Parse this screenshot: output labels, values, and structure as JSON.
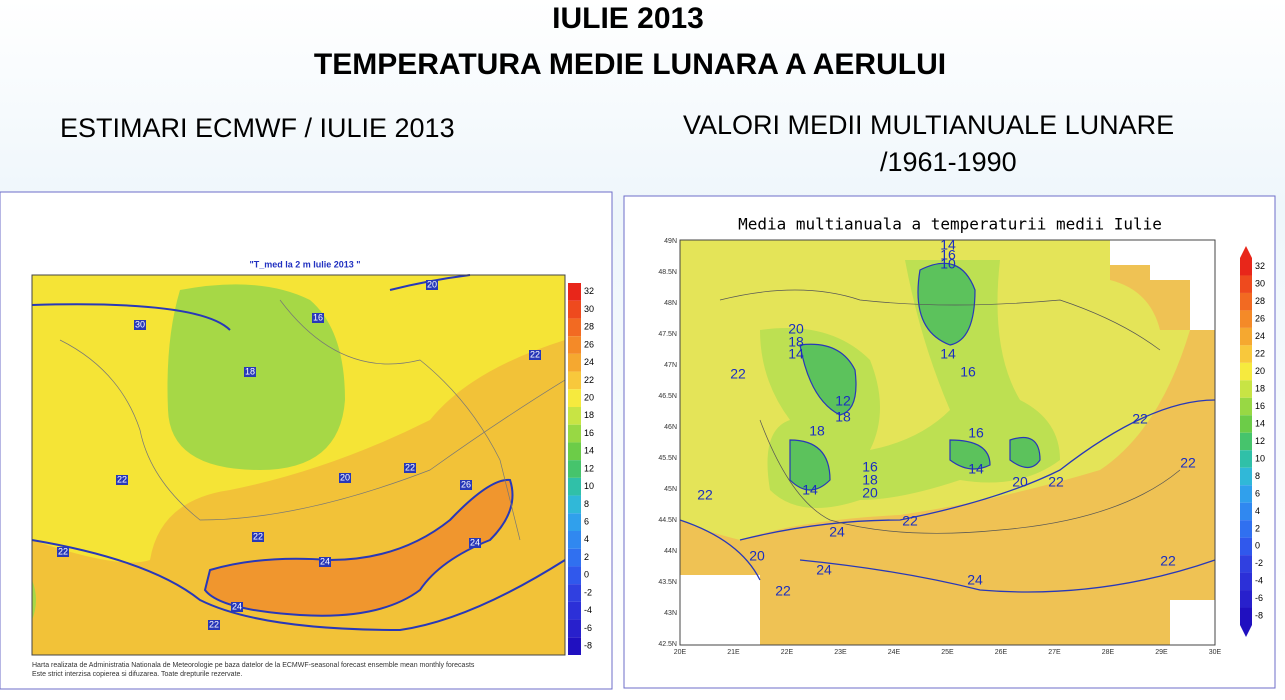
{
  "header": {
    "title": "IULIE 2013",
    "subtitle": "TEMPERATURA MEDIE LUNARA A AERULUI"
  },
  "left": {
    "caption": "ESTIMARI ECMWF / IULIE 2013",
    "map_title": "\"T_med la 2 m Iulie 2013 \"",
    "colorbar": [
      "32",
      "30",
      "28",
      "26",
      "24",
      "22",
      "20",
      "18",
      "16",
      "14",
      "12",
      "10",
      "8",
      "6",
      "4",
      "2",
      "0",
      "-2",
      "-4",
      "-6",
      "-8"
    ],
    "contour_labels": [
      "30",
      "16",
      "18",
      "20",
      "22",
      "20",
      "22",
      "22",
      "22",
      "26",
      "24",
      "24",
      "24",
      "22",
      "22"
    ],
    "footer": [
      "Harta realizata de Administratia Nationala de Meteorologie pe baza datelor de la ECMWF-seasonal forecast ensemble mean monthly forecasts",
      "Este strict interzisa copierea si difuzarea. Toate drepturile rezervate."
    ]
  },
  "right": {
    "caption": [
      "VALORI MEDII MULTIANUALE LUNARE",
      "/1961-1990"
    ],
    "map_title": "Media multianuala a temperaturii medii Iulie",
    "colorbar": [
      "32",
      "30",
      "28",
      "26",
      "24",
      "22",
      "20",
      "18",
      "16",
      "14",
      "12",
      "10",
      "8",
      "6",
      "4",
      "2",
      "0",
      "-2",
      "-4",
      "-6",
      "-8"
    ],
    "lat_labels": [
      "49N",
      "48.5N",
      "48N",
      "47.5N",
      "47N",
      "46.5N",
      "46N",
      "45.5N",
      "45N",
      "44.5N",
      "44N",
      "43.5N",
      "43N",
      "42.5N"
    ],
    "lon_labels": [
      "20E",
      "21E",
      "22E",
      "23E",
      "24E",
      "25E",
      "26E",
      "27E",
      "28E",
      "29E",
      "30E"
    ],
    "contour_labels": [
      "14",
      "16",
      "10",
      "20",
      "18",
      "14",
      "22",
      "14",
      "16",
      "12",
      "18",
      "18",
      "16",
      "16",
      "18",
      "20",
      "14",
      "14",
      "22",
      "20",
      "22",
      "22",
      "22",
      "22",
      "24",
      "20",
      "24",
      "24",
      "22",
      "22"
    ]
  }
}
